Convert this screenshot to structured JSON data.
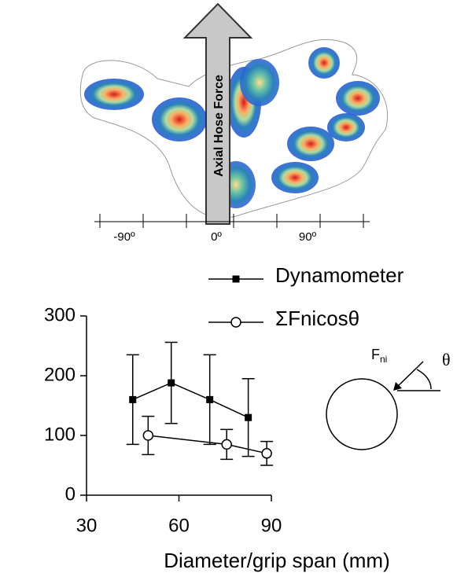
{
  "pressure_map": {
    "arrow_label": "Axial Hose Force",
    "angle_labels": [
      "-90º",
      "0º",
      "90º"
    ]
  },
  "diagram": {
    "force_label": "F",
    "force_subscript": "ni",
    "angle_label": "θ"
  },
  "chart_data": {
    "type": "line",
    "xlabel": "Diameter/grip span (mm)",
    "xlim": [
      30,
      90
    ],
    "xticks": [
      30,
      60,
      90
    ],
    "ylim": [
      0,
      300
    ],
    "yticks": [
      0,
      100,
      200,
      300
    ],
    "series": [
      {
        "name": "Dynamometer",
        "color": "#000000",
        "marker": "square",
        "x": [
          45,
          57.5,
          70,
          82.5
        ],
        "values": [
          160,
          188,
          160,
          130
        ],
        "errors": [
          75,
          68,
          75,
          65
        ]
      },
      {
        "name": "ΣFnicosθ",
        "color": "#000000",
        "marker": "circle",
        "x": [
          50,
          75.5,
          88.5
        ],
        "values": [
          100,
          85,
          70
        ],
        "errors": [
          32,
          25,
          20
        ]
      }
    ]
  }
}
